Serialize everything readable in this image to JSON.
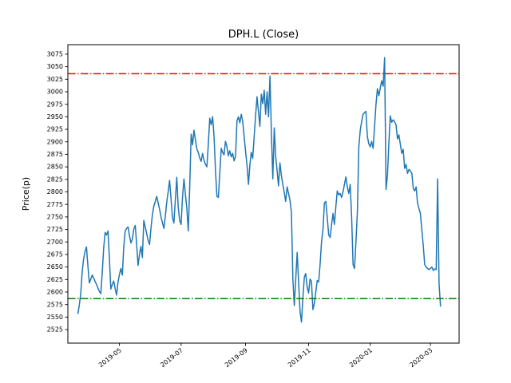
{
  "chart_data": {
    "type": "line",
    "title": "DPH.L (Close)",
    "xlabel": "",
    "ylabel": "Price(p)",
    "legend": null,
    "grid": false,
    "line_color": "#1f77b4",
    "line_width": 1.5,
    "x_tick_labels": [
      "2019-05",
      "2019-07",
      "2019-09",
      "2019-11",
      "2020-01",
      "2020-03"
    ],
    "x_tick_indices": [
      29,
      72,
      117,
      161,
      204,
      246
    ],
    "y_tick_min": 2525,
    "y_tick_max": 3075,
    "y_tick_step": 25,
    "ylim": [
      2498,
      3094
    ],
    "xlim": [
      -7,
      266
    ],
    "hlines": [
      {
        "value": 3036,
        "color": "#ff0000",
        "style": "dashdot"
      },
      {
        "value": 2587,
        "color": "#008000",
        "style": "dashdot"
      }
    ],
    "series": [
      {
        "name": "Close",
        "values": [
          2557,
          2575,
          2598,
          2640,
          2666,
          2681,
          2690,
          2652,
          2618,
          2626,
          2634,
          2628,
          2621,
          2615,
          2608,
          2601,
          2597,
          2640,
          2689,
          2719,
          2714,
          2722,
          2664,
          2606,
          2615,
          2622,
          2607,
          2594,
          2620,
          2635,
          2647,
          2634,
          2690,
          2722,
          2727,
          2730,
          2712,
          2698,
          2706,
          2726,
          2733,
          2694,
          2653,
          2675,
          2691,
          2669,
          2743,
          2730,
          2717,
          2703,
          2695,
          2728,
          2755,
          2772,
          2781,
          2791,
          2778,
          2765,
          2750,
          2738,
          2727,
          2752,
          2779,
          2800,
          2823,
          2786,
          2749,
          2738,
          2784,
          2829,
          2770,
          2743,
          2735,
          2790,
          2826,
          2795,
          2767,
          2722,
          2810,
          2915,
          2894,
          2923,
          2905,
          2886,
          2879,
          2868,
          2861,
          2877,
          2863,
          2855,
          2850,
          2895,
          2947,
          2934,
          2950,
          2910,
          2842,
          2791,
          2789,
          2838,
          2887,
          2879,
          2874,
          2901,
          2890,
          2872,
          2882,
          2870,
          2877,
          2862,
          2871,
          2942,
          2950,
          2938,
          2955,
          2940,
          2910,
          2880,
          2853,
          2815,
          2853,
          2879,
          2867,
          2910,
          2952,
          2990,
          2960,
          2931,
          2995,
          2976,
          3003,
          2955,
          3000,
          2950,
          3031,
          2918,
          2826,
          2928,
          2870,
          2842,
          2812,
          2858,
          2833,
          2815,
          2799,
          2781,
          2810,
          2797,
          2783,
          2759,
          2626,
          2573,
          2626,
          2679,
          2620,
          2561,
          2540,
          2590,
          2630,
          2637,
          2610,
          2598,
          2626,
          2621,
          2565,
          2577,
          2600,
          2623,
          2620,
          2655,
          2700,
          2725,
          2778,
          2781,
          2748,
          2714,
          2709,
          2735,
          2757,
          2735,
          2770,
          2802,
          2794,
          2797,
          2789,
          2800,
          2815,
          2830,
          2810,
          2797,
          2815,
          2750,
          2655,
          2647,
          2700,
          2760,
          2890,
          2923,
          2940,
          2955,
          2958,
          2961,
          2911,
          2896,
          2890,
          2901,
          2887,
          2930,
          2975,
          3006,
          2992,
          3008,
          3022,
          3011,
          3068,
          2805,
          2834,
          2900,
          2952,
          2939,
          2944,
          2940,
          2934,
          2906,
          2914,
          2895,
          2877,
          2885,
          2847,
          2855,
          2837,
          2845,
          2842,
          2837,
          2807,
          2802,
          2810,
          2778,
          2767,
          2757,
          2725,
          2693,
          2655,
          2650,
          2647,
          2645,
          2647,
          2650,
          2643,
          2646,
          2645,
          2826,
          2617,
          2572
        ]
      }
    ]
  }
}
